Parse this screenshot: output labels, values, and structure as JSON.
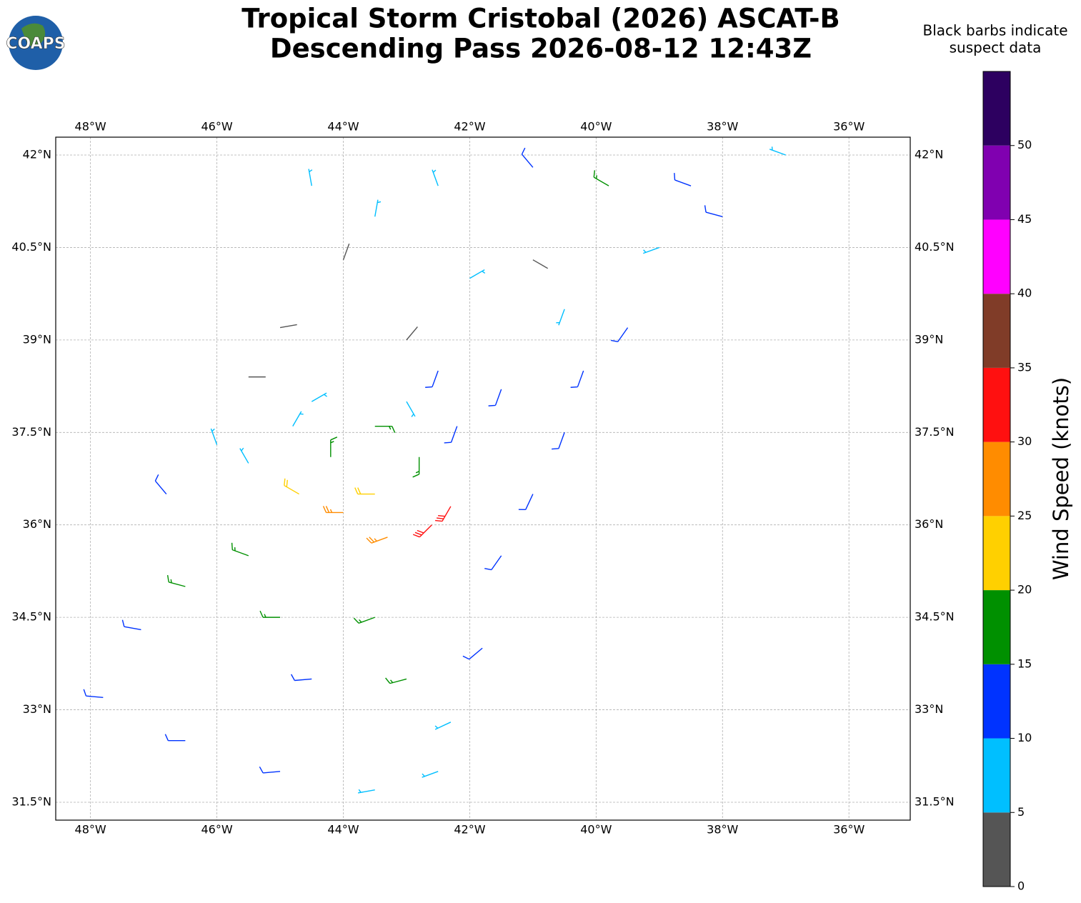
{
  "logo": "COAPS",
  "title": [
    "Tropical Storm Cristobal (2026) ASCAT-B",
    "Descending Pass 2026-08-12 12:43Z"
  ],
  "note": [
    "Black barbs indicate",
    "suspect data"
  ],
  "chart_data": {
    "type": "barbs",
    "xlim": [
      -48.55,
      -35.03
    ],
    "ylim": [
      31.21,
      42.29
    ],
    "xticks": [
      {
        "value": -48,
        "label": "48°W"
      },
      {
        "value": -46,
        "label": "46°W"
      },
      {
        "value": -44,
        "label": "44°W"
      },
      {
        "value": -42,
        "label": "42°W"
      },
      {
        "value": -40,
        "label": "40°W"
      },
      {
        "value": -38,
        "label": "38°W"
      },
      {
        "value": -36,
        "label": "36°W"
      }
    ],
    "yticks": [
      {
        "value": 31.5,
        "label": "31.5°N"
      },
      {
        "value": 33,
        "label": "33°N"
      },
      {
        "value": 34.5,
        "label": "34.5°N"
      },
      {
        "value": 36,
        "label": "36°N"
      },
      {
        "value": 37.5,
        "label": "37.5°N"
      },
      {
        "value": 39,
        "label": "39°N"
      },
      {
        "value": 40.5,
        "label": "40.5°N"
      },
      {
        "value": 42,
        "label": "42°N"
      }
    ],
    "grid": true,
    "barbs": {
      "lon": [
        -43.5,
        -42.8,
        -43.5,
        -44.2,
        -42.6,
        -42.3,
        -43.3,
        -44.0,
        -44.7,
        -45.5,
        -46.5,
        -47.2,
        -47.8,
        -46.5,
        -45.0,
        -43.5,
        -42.5,
        -42.3,
        -43.0,
        -44.5,
        -45.0,
        -43.5,
        -41.8,
        -41.5,
        -41.0,
        -40.5,
        -40.2,
        -41.5,
        -42.5,
        -39.5,
        -39.0,
        -38.5,
        -37.0,
        -39.8,
        -41.0,
        -42.5,
        -43.5,
        -44.5,
        -44.0,
        -45.0,
        -45.5,
        -43.0,
        -42.0,
        -41.0,
        -44.5,
        -46.0,
        -46.8,
        -45.5,
        -44.8,
        -40.5,
        -38.0,
        -42.2,
        -43.0
      ],
      "lat": [
        37.6,
        37.1,
        36.5,
        37.1,
        36.0,
        36.3,
        35.8,
        36.2,
        36.5,
        35.5,
        35.0,
        34.3,
        33.2,
        32.5,
        32.0,
        31.7,
        32.0,
        32.8,
        33.5,
        33.5,
        34.5,
        34.5,
        34.0,
        35.5,
        36.5,
        37.5,
        38.5,
        38.2,
        38.5,
        39.2,
        40.5,
        41.5,
        42.0,
        41.5,
        41.8,
        41.5,
        41.0,
        41.5,
        40.3,
        39.2,
        38.4,
        39.0,
        40.0,
        40.3,
        38.0,
        37.3,
        36.5,
        37.0,
        37.6,
        39.5,
        41.0,
        37.6,
        38.0
      ],
      "speed": [
        17,
        18,
        24,
        16,
        32,
        33,
        27,
        26,
        22,
        18,
        17,
        13,
        12,
        11,
        11,
        9,
        8,
        9,
        15,
        14,
        16,
        18,
        12,
        14,
        13,
        12,
        11,
        12,
        10,
        12,
        9,
        11,
        8,
        15,
        13,
        8,
        7,
        6,
        4,
        4,
        3,
        4,
        7,
        4,
        6,
        8,
        12,
        9,
        8,
        9,
        12,
        12,
        8
      ],
      "direction": [
        90,
        180,
        270,
        0,
        225,
        210,
        250,
        270,
        300,
        290,
        285,
        280,
        275,
        270,
        265,
        260,
        250,
        245,
        255,
        265,
        270,
        250,
        230,
        215,
        205,
        200,
        200,
        200,
        200,
        215,
        250,
        290,
        290,
        300,
        320,
        340,
        10,
        350,
        20,
        80,
        90,
        40,
        60,
        120,
        60,
        340,
        320,
        330,
        30,
        200,
        285,
        200,
        150
      ]
    },
    "colorbar": {
      "label": "Wind Speed (knots)",
      "bounds": [
        0,
        5,
        10,
        15,
        20,
        25,
        30,
        35,
        40,
        45,
        50,
        55
      ],
      "ticks": [
        0,
        5,
        10,
        15,
        20,
        25,
        30,
        35,
        40,
        45,
        50
      ],
      "colors": [
        "#555555",
        "#00bfff",
        "#0033ff",
        "#009000",
        "#ffd000",
        "#ff8c00",
        "#ff1010",
        "#803c28",
        "#ff00ff",
        "#8000b0",
        "#2d0060"
      ]
    }
  }
}
